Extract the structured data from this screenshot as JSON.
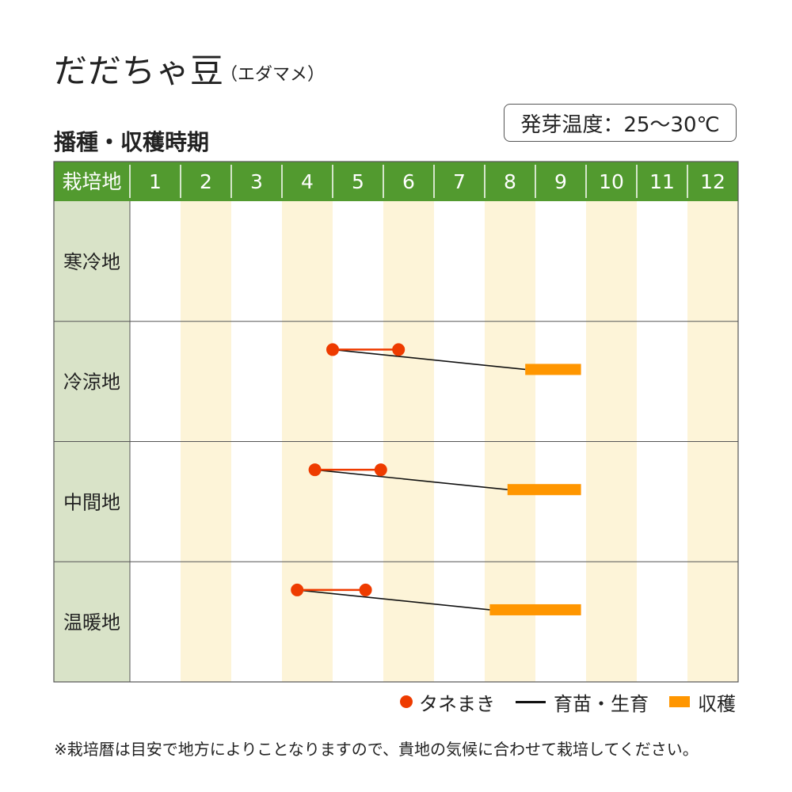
{
  "title": "だだちゃ豆",
  "subtitle": "（エダマメ）",
  "section_title": "播種・収穫時期",
  "germination_temp": "発芽温度：25～30℃",
  "colors": {
    "header_green": "#529a2f",
    "region_column": "#d9e3c8",
    "month_stripe": "#fdf4d8",
    "sowing": "#ee3b00",
    "growth": "#111111",
    "harvest": "#ff9600"
  },
  "legend": {
    "sowing": "タネまき",
    "growth": "育苗・生育",
    "harvest": "収穫"
  },
  "footnote": "※栽培暦は目安で地方によりことなりますので、貴地の気候に合わせて栽培してください。",
  "chart_data": {
    "type": "gantt",
    "header_label": "栽培地",
    "months": [
      "1",
      "2",
      "3",
      "4",
      "5",
      "6",
      "7",
      "8",
      "9",
      "10",
      "11",
      "12"
    ],
    "regions": [
      {
        "name": "寒冷地",
        "sowing": null,
        "harvest": null
      },
      {
        "name": "冷涼地",
        "sowing": [
          5.0,
          6.3
        ],
        "harvest": [
          8.8,
          9.9
        ]
      },
      {
        "name": "中間地",
        "sowing": [
          4.65,
          5.95
        ],
        "harvest": [
          8.45,
          9.9
        ]
      },
      {
        "name": "温暖地",
        "sowing": [
          4.3,
          5.65
        ],
        "harvest": [
          8.1,
          9.9
        ]
      }
    ]
  }
}
